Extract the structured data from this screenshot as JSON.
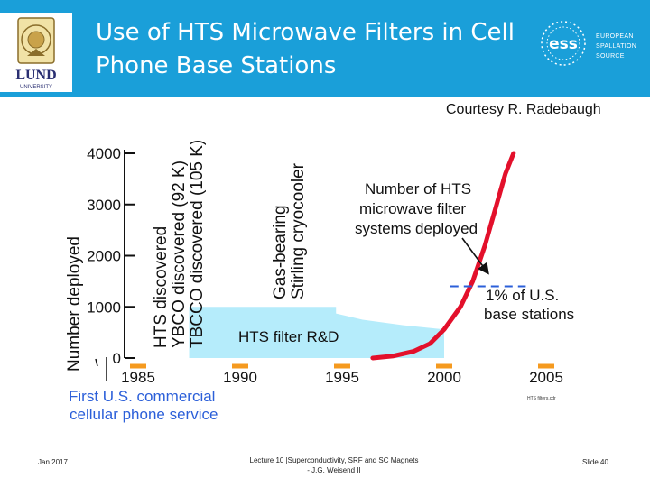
{
  "slide": {
    "title_line1": "Use of HTS Microwave Filters in Cell",
    "title_line2": "Phone Base Stations",
    "courtesy": "Courtesy R. Radebaugh",
    "lund_text": "LUND",
    "lund_sub": "UNIVERSITY",
    "ess_line1": "EUROPEAN",
    "ess_line2": "SPALLATION",
    "ess_line3": "SOURCE",
    "ess_logo_text": "ess"
  },
  "footer": {
    "date": "Jan 2017",
    "lecture_line1": "Lecture 10 |Superconductivity, SRF and SC Magnets",
    "lecture_line2": "- J.G. Weisend II",
    "slide_num": "Slide 40"
  },
  "colors": {
    "header": "#1a9fd9",
    "curve": "#e3102b",
    "rd_fill": "#b5ecfb",
    "annotation_text": "#2b5fd9"
  },
  "chart_data": {
    "type": "line",
    "ylabel": "Number deployed",
    "y_ticks": [
      0,
      1000,
      2000,
      3000,
      4000
    ],
    "x_ticks": [
      1985,
      1990,
      1995,
      2000,
      2005
    ],
    "ylim": [
      0,
      4000
    ],
    "xlim": [
      1981,
      2007
    ],
    "series": [
      {
        "name": "Number of HTS microwave filter systems deployed",
        "points": [
          [
            1996.5,
            0
          ],
          [
            1997.5,
            40
          ],
          [
            1998.5,
            130
          ],
          [
            1999.3,
            280
          ],
          [
            2000,
            560
          ],
          [
            2000.8,
            1000
          ],
          [
            2001.4,
            1500
          ],
          [
            2002,
            2200
          ],
          [
            2002.5,
            2900
          ],
          [
            2003,
            3600
          ],
          [
            2003.4,
            4000
          ]
        ]
      }
    ],
    "rd_region": {
      "label": "HTS filter R&D",
      "points": [
        [
          1987.5,
          1000
        ],
        [
          1994.7,
          1000
        ],
        [
          1994.7,
          870
        ],
        [
          1996,
          750
        ],
        [
          1998,
          640
        ],
        [
          2000,
          560
        ]
      ]
    },
    "one_percent": {
      "y": 1400,
      "x_start": 2000.3,
      "x_end": 2004,
      "label_line1": "1% of U.S.",
      "label_line2": "base stations"
    },
    "annotations": {
      "hts_discovered": "HTS discovered",
      "ybco": "YBCO discovered (92 K)",
      "tbcco": "TBCCO discovered (105 K)",
      "cryo_line1": "Gas-bearing",
      "cryo_line2": "Stirling cryocooler",
      "curve_line1": "Number of HTS",
      "curve_line2": "microwave filter",
      "curve_line3": "systems deployed",
      "first_line1": "First U.S. commercial",
      "first_line2": "cellular phone service",
      "source": "HTS filters.cdr"
    }
  }
}
